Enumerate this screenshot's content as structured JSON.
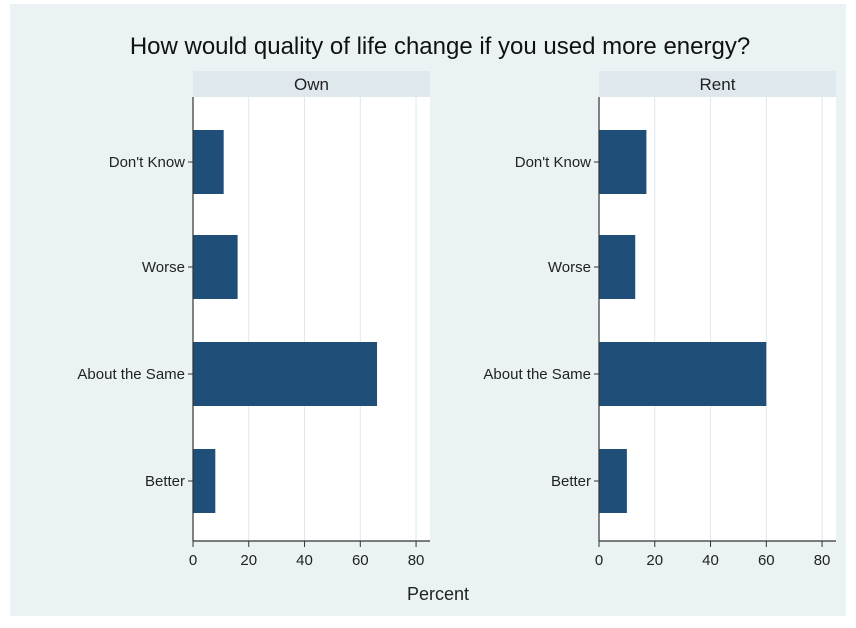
{
  "chart_data": {
    "type": "bar",
    "orientation": "horizontal",
    "title": "How would quality of life change if you used more energy?",
    "xlabel": "Percent",
    "xlim": [
      0,
      85
    ],
    "xticks": [
      0,
      20,
      40,
      60,
      80
    ],
    "categories": [
      "Don't Know",
      "Worse",
      "About the Same",
      "Better"
    ],
    "grid": true,
    "colors": {
      "bar": "#1f4e79",
      "panel_background": "#ffffff",
      "outer_background": "#eaf2f3",
      "strip_background": "#dfe8ec",
      "grid": "#dde7ee"
    },
    "panels": [
      {
        "name": "Own",
        "values": [
          11,
          16,
          66,
          8
        ]
      },
      {
        "name": "Rent",
        "values": [
          17,
          13,
          60,
          10
        ]
      }
    ]
  }
}
